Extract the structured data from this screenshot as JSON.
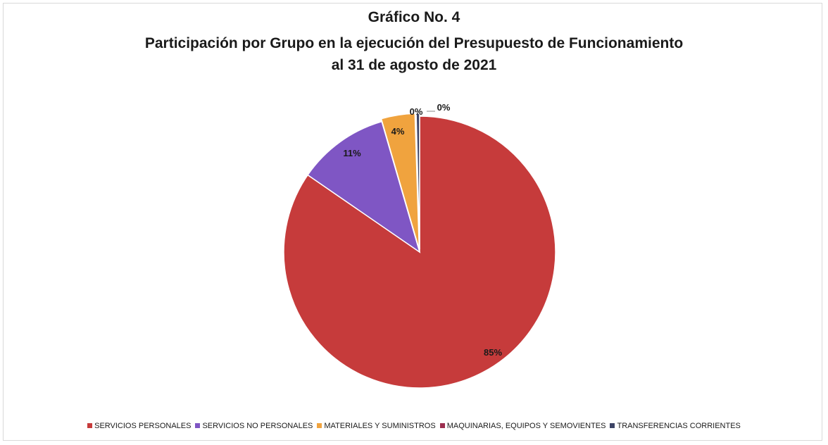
{
  "chart_data": {
    "type": "pie",
    "title": "Gráfico No. 4",
    "subtitle_lines": [
      "Participación por Grupo en la ejecución del Presupuesto de Funcionamiento",
      "al 31 de agosto de 2021"
    ],
    "categories": [
      "SERVICIOS PERSONALES",
      "SERVICIOS NO PERSONALES",
      "MATERIALES Y SUMINISTROS",
      "MAQUINARIAS, EQUIPOS Y SEMOVIENTES",
      "TRANSFERENCIAS CORRIENTES"
    ],
    "values": [
      84.6,
      10.9,
      4.0,
      0.1,
      0.4
    ],
    "data_labels": [
      "85%",
      "11%",
      "4%",
      "0%",
      "0%"
    ],
    "colors": [
      "#c63b3b",
      "#7f56c4",
      "#f0a33e",
      "#9c2f4f",
      "#3d4466"
    ],
    "legend_position": "bottom"
  }
}
